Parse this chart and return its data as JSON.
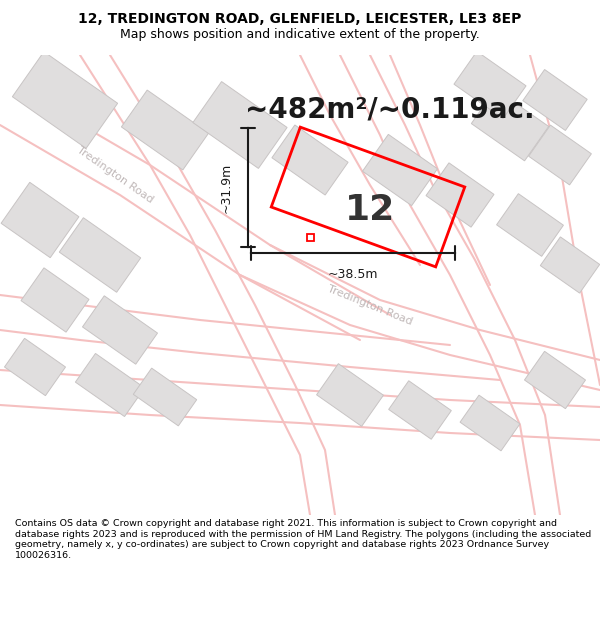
{
  "title_line1": "12, TREDINGTON ROAD, GLENFIELD, LEICESTER, LE3 8EP",
  "title_line2": "Map shows position and indicative extent of the property.",
  "area_text": "~482m²/~0.119ac.",
  "number_label": "12",
  "dim_height": "~31.9m",
  "dim_width": "~38.5m",
  "road_label": "Tredington Road",
  "footer_text": "Contains OS data © Crown copyright and database right 2021. This information is subject to Crown copyright and database rights 2023 and is reproduced with the permission of HM Land Registry. The polygons (including the associated geometry, namely x, y co-ordinates) are subject to Crown copyright and database rights 2023 Ordnance Survey 100026316.",
  "map_bg": "#ffffff",
  "road_color": "#f5c0c0",
  "building_color": "#e0dede",
  "building_edge": "#c8c4c4",
  "property_color": "#ff0000",
  "dim_color": "#1a1a1a",
  "title_bg": "#ffffff",
  "footer_bg": "#ffffff",
  "text_color": "#333333",
  "road_label_color": "#c0b8b8",
  "area_text_color": "#1a1a1a",
  "title_fontsize": 10,
  "subtitle_fontsize": 9,
  "area_fontsize": 20,
  "number_fontsize": 26,
  "dim_fontsize": 9,
  "road_label_fontsize": 8,
  "footer_fontsize": 6.8
}
